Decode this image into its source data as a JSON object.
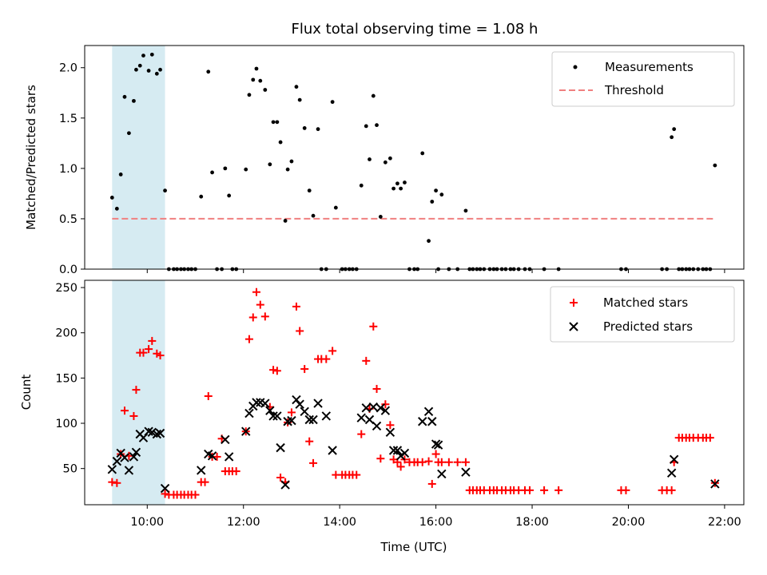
{
  "chart_data": [
    {
      "type": "scatter",
      "title": "Flux total observing time = 1.08 h",
      "xlabel": "",
      "ylabel": "Matched/Predicted stars",
      "xlim": [
        8.7,
        22.4
      ],
      "ylim": [
        0,
        2.22
      ],
      "yticks": [
        0.0,
        0.5,
        1.0,
        1.5,
        2.0
      ],
      "ytick_labels": [
        "0.0",
        "0.5",
        "1.0",
        "1.5",
        "2.0"
      ],
      "xticks": [
        10,
        12,
        14,
        16,
        18,
        20,
        22
      ],
      "shaded_span": [
        9.27,
        10.37
      ],
      "legend_position": "upper right",
      "threshold": {
        "name": "Threshold",
        "y": 0.5,
        "x": [
          9.27,
          21.8
        ],
        "color": "#f08080"
      },
      "series": [
        {
          "name": "Measurements",
          "color": "#000000",
          "marker": "dot",
          "x": [
            9.27,
            9.37,
            9.45,
            9.53,
            9.62,
            9.72,
            9.77,
            9.85,
            9.92,
            10.03,
            10.1,
            10.2,
            10.27,
            10.37,
            10.45,
            10.55,
            10.62,
            10.7,
            10.77,
            10.85,
            10.92,
            11.0,
            11.12,
            11.27,
            11.35,
            11.45,
            11.55,
            11.62,
            11.7,
            11.77,
            11.85,
            12.05,
            12.12,
            12.2,
            12.27,
            12.35,
            12.45,
            12.55,
            12.62,
            12.7,
            12.77,
            12.87,
            12.92,
            13.0,
            13.1,
            13.17,
            13.27,
            13.37,
            13.45,
            13.55,
            13.62,
            13.72,
            13.85,
            13.92,
            14.05,
            14.12,
            14.2,
            14.27,
            14.35,
            14.45,
            14.55,
            14.62,
            14.7,
            14.77,
            14.85,
            14.95,
            15.05,
            15.12,
            15.2,
            15.27,
            15.35,
            15.45,
            15.55,
            15.62,
            15.72,
            15.85,
            15.92,
            16.0,
            16.05,
            16.12,
            16.27,
            16.45,
            16.62,
            16.7,
            16.77,
            16.85,
            16.92,
            17.0,
            17.12,
            17.2,
            17.27,
            17.37,
            17.45,
            17.55,
            17.62,
            17.72,
            17.85,
            17.95,
            18.25,
            18.55,
            19.85,
            19.95,
            20.7,
            20.8,
            20.9,
            20.95,
            21.05,
            21.12,
            21.2,
            21.27,
            21.35,
            21.45,
            21.55,
            21.62,
            21.7,
            21.8
          ],
          "y": [
            0.71,
            0.6,
            0.94,
            1.71,
            1.35,
            1.67,
            1.98,
            2.02,
            2.12,
            1.97,
            2.13,
            1.94,
            1.98,
            0.78,
            0.0,
            0.0,
            0.0,
            0.0,
            0.0,
            0.0,
            0.0,
            0.0,
            0.72,
            1.96,
            0.96,
            0.0,
            0.0,
            1.0,
            0.73,
            0.0,
            0.0,
            0.99,
            1.73,
            1.88,
            1.99,
            1.87,
            1.78,
            1.04,
            1.46,
            1.46,
            1.26,
            0.48,
            0.99,
            1.07,
            1.81,
            1.68,
            1.4,
            0.78,
            0.53,
            1.39,
            0.0,
            0.0,
            1.66,
            0.61,
            0.0,
            0.0,
            0.0,
            0.0,
            0.0,
            0.83,
            1.42,
            1.09,
            1.72,
            1.43,
            0.52,
            1.06,
            1.1,
            0.8,
            0.85,
            0.8,
            0.86,
            0.0,
            0.0,
            0.0,
            1.15,
            0.28,
            0.67,
            0.78,
            0.0,
            0.74,
            0.0,
            0.0,
            0.58,
            0.0,
            0.0,
            0.0,
            0.0,
            0.0,
            0.0,
            0.0,
            0.0,
            0.0,
            0.0,
            0.0,
            0.0,
            0.0,
            0.0,
            0.0,
            0.0,
            0.0,
            0.0,
            0.0,
            0.0,
            0.0,
            1.31,
            1.39,
            0.0,
            0.0,
            0.0,
            0.0,
            0.0,
            0.0,
            0.0,
            0.0,
            0.0,
            1.03
          ]
        }
      ]
    },
    {
      "type": "scatter",
      "title": "",
      "xlabel": "Time (UTC)",
      "ylabel": "Count",
      "xlim": [
        8.7,
        22.4
      ],
      "ylim": [
        10,
        258
      ],
      "yticks": [
        50,
        100,
        150,
        200,
        250
      ],
      "ytick_labels": [
        "50",
        "100",
        "150",
        "200",
        "250"
      ],
      "xticks": [
        10,
        12,
        14,
        16,
        18,
        20,
        22
      ],
      "xtick_labels": [
        "10:00",
        "12:00",
        "14:00",
        "16:00",
        "18:00",
        "20:00",
        "22:00"
      ],
      "shaded_span": [
        9.27,
        10.37
      ],
      "legend_position": "upper right",
      "series": [
        {
          "name": "Matched stars",
          "color": "#ff0000",
          "marker": "plus",
          "x": [
            9.27,
            9.37,
            9.45,
            9.53,
            9.62,
            9.72,
            9.77,
            9.85,
            9.92,
            10.03,
            10.1,
            10.2,
            10.27,
            10.37,
            10.45,
            10.55,
            10.62,
            10.7,
            10.77,
            10.85,
            10.92,
            11.0,
            11.12,
            11.2,
            11.27,
            11.35,
            11.45,
            11.55,
            11.62,
            11.7,
            11.77,
            11.85,
            12.05,
            12.12,
            12.2,
            12.27,
            12.35,
            12.45,
            12.55,
            12.62,
            12.7,
            12.77,
            12.87,
            12.92,
            13.0,
            13.1,
            13.17,
            13.27,
            13.37,
            13.45,
            13.55,
            13.62,
            13.72,
            13.85,
            13.92,
            14.05,
            14.12,
            14.2,
            14.27,
            14.35,
            14.45,
            14.55,
            14.62,
            14.7,
            14.77,
            14.85,
            14.95,
            15.05,
            15.12,
            15.2,
            15.27,
            15.35,
            15.45,
            15.55,
            15.62,
            15.72,
            15.85,
            15.92,
            16.0,
            16.05,
            16.12,
            16.27,
            16.45,
            16.62,
            16.7,
            16.77,
            16.85,
            16.92,
            17.0,
            17.12,
            17.2,
            17.27,
            17.37,
            17.45,
            17.55,
            17.62,
            17.72,
            17.85,
            17.95,
            18.25,
            18.55,
            19.85,
            19.95,
            20.7,
            20.8,
            20.9,
            20.95,
            21.05,
            21.12,
            21.2,
            21.27,
            21.35,
            21.45,
            21.55,
            21.62,
            21.7,
            21.8
          ],
          "y": [
            35,
            34,
            66,
            114,
            64,
            108,
            137,
            178,
            178,
            182,
            191,
            177,
            175,
            22,
            21,
            21,
            21,
            21,
            21,
            21,
            21,
            21,
            35,
            35,
            130,
            63,
            63,
            83,
            47,
            47,
            47,
            47,
            91,
            193,
            217,
            245,
            231,
            218,
            118,
            159,
            158,
            40,
            35,
            101,
            112,
            229,
            202,
            160,
            80,
            56,
            171,
            171,
            171,
            180,
            43,
            43,
            43,
            43,
            43,
            43,
            88,
            169,
            116,
            207,
            138,
            61,
            121,
            98,
            60,
            57,
            52,
            60,
            57,
            57,
            57,
            57,
            58,
            33,
            66,
            57,
            57,
            57,
            57,
            57,
            26,
            26,
            26,
            26,
            26,
            26,
            26,
            26,
            26,
            26,
            26,
            26,
            26,
            26,
            26,
            26,
            26,
            26,
            26,
            26,
            26,
            26,
            57,
            84,
            84,
            84,
            84,
            84,
            84,
            84,
            84,
            84,
            34
          ]
        },
        {
          "name": "Predicted stars",
          "color": "#000000",
          "marker": "x",
          "x": [
            9.27,
            9.37,
            9.45,
            9.53,
            9.62,
            9.72,
            9.77,
            9.85,
            9.92,
            10.03,
            10.1,
            10.2,
            10.27,
            10.37,
            11.12,
            11.27,
            11.35,
            11.62,
            11.7,
            12.05,
            12.12,
            12.2,
            12.27,
            12.35,
            12.45,
            12.55,
            12.62,
            12.7,
            12.77,
            12.87,
            12.92,
            13.0,
            13.1,
            13.17,
            13.27,
            13.37,
            13.45,
            13.55,
            13.72,
            13.85,
            14.45,
            14.55,
            14.62,
            14.7,
            14.77,
            14.85,
            14.95,
            15.05,
            15.12,
            15.2,
            15.27,
            15.35,
            15.72,
            15.85,
            15.92,
            16.0,
            16.05,
            16.12,
            16.62,
            20.9,
            20.95,
            21.8
          ],
          "y": [
            49,
            58,
            67,
            62,
            48,
            63,
            68,
            88,
            84,
            91,
            90,
            88,
            89,
            28,
            48,
            66,
            64,
            82,
            63,
            91,
            111,
            119,
            123,
            123,
            122,
            114,
            108,
            108,
            73,
            32,
            102,
            103,
            126,
            121,
            113,
            104,
            104,
            122,
            108,
            70,
            106,
            117,
            104,
            118,
            97,
            117,
            114,
            90,
            70,
            70,
            64,
            67,
            102,
            113,
            102,
            77,
            76,
            44,
            46,
            45,
            60,
            33
          ]
        }
      ]
    }
  ]
}
